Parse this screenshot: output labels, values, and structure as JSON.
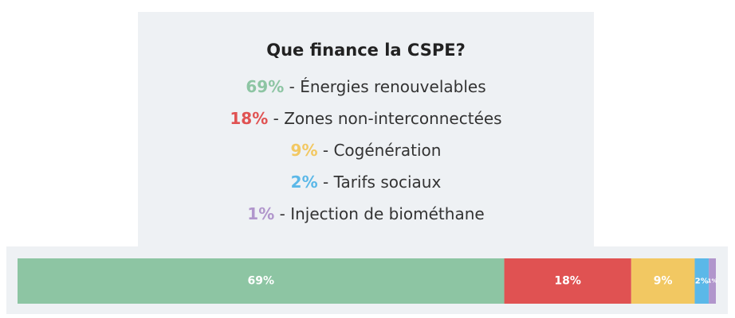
{
  "chart_data": {
    "type": "stacked-bar",
    "orientation": "horizontal",
    "title": "Que finance la CSPE?",
    "series": [
      {
        "name": "Énergies renouvelables",
        "color": "#8dc5a3",
        "values": [
          69
        ],
        "value_labels": [
          "69%"
        ]
      },
      {
        "name": "Zones non-interconnectées",
        "color": "#e05252",
        "values": [
          18
        ],
        "value_labels": [
          "18%"
        ]
      },
      {
        "name": "Cogénération",
        "color": "#f2c862",
        "values": [
          9
        ],
        "value_labels": [
          "9%"
        ]
      },
      {
        "name": "Tarifs sociaux",
        "color": "#5bb8e8",
        "values": [
          2
        ],
        "value_labels": [
          "2%"
        ]
      },
      {
        "name": "Injection de biométhane",
        "color": "#b196cc",
        "values": [
          1
        ],
        "value_labels": [
          "1%"
        ]
      }
    ]
  }
}
